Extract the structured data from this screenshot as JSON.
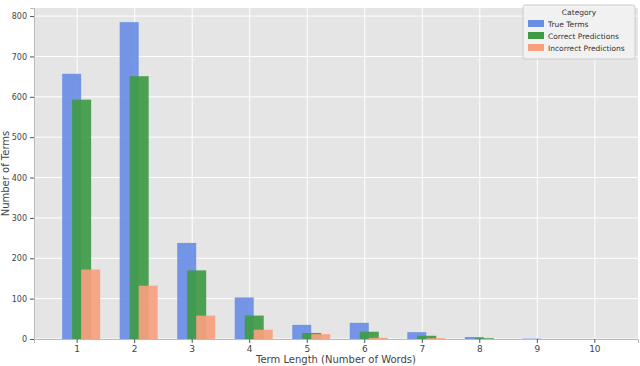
{
  "chart_data": {
    "type": "bar",
    "x_label": "Term Length (Number of Words)",
    "y_label": "Number of Terms",
    "legend_title": "Category",
    "categories": [
      "1",
      "2",
      "3",
      "4",
      "5",
      "6",
      "7",
      "8",
      "9",
      "10"
    ],
    "series": [
      {
        "name": "True Terms",
        "color": "#6a8ee6",
        "values": [
          657,
          785,
          238,
          103,
          35,
          40,
          17,
          5,
          1,
          0
        ]
      },
      {
        "name": "Correct Predictions",
        "color": "#3f9a45",
        "values": [
          593,
          651,
          170,
          58,
          15,
          18,
          8,
          2,
          0,
          0
        ]
      },
      {
        "name": "Incorrect Predictions",
        "color": "#f7a07e",
        "values": [
          172,
          132,
          58,
          23,
          12,
          3,
          2,
          0,
          0,
          0
        ]
      }
    ],
    "ylim": [
      0,
      820
    ],
    "yticks": [
      0,
      100,
      200,
      300,
      400,
      500,
      600,
      700,
      800
    ],
    "grid": true,
    "legend": "upper right"
  }
}
